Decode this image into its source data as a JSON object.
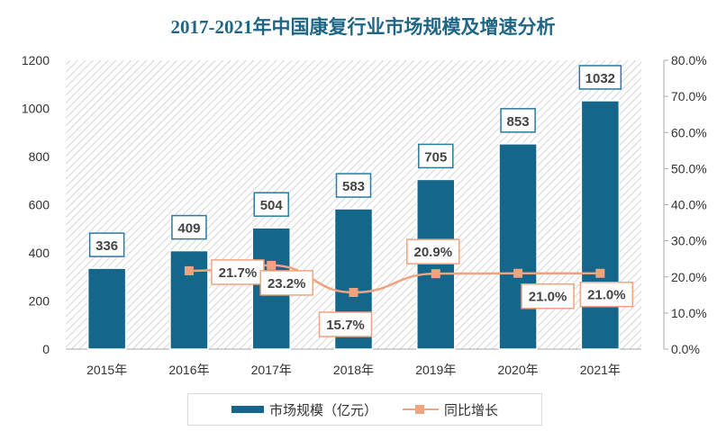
{
  "chart_data": {
    "type": "bar+line",
    "title": "2017-2021年中国康复行业市场规模及增速分析",
    "categories": [
      "2015年",
      "2016年",
      "2017年",
      "2018年",
      "2019年",
      "2020年",
      "2021年"
    ],
    "series": [
      {
        "name": "市场规模（亿元）",
        "type": "bar",
        "axis": "left",
        "values": [
          336,
          409,
          504,
          583,
          705,
          853,
          1032
        ],
        "labels": [
          "336",
          "409",
          "504",
          "583",
          "705",
          "853",
          "1032"
        ]
      },
      {
        "name": "同比增长",
        "type": "line",
        "axis": "right",
        "values": [
          null,
          21.7,
          23.2,
          15.7,
          20.9,
          21.0,
          21.0
        ],
        "labels": [
          "",
          "21.7%",
          "23.2%",
          "15.7%",
          "20.9%",
          "21.0%",
          "21.0%"
        ]
      }
    ],
    "y_left": {
      "range": [
        0,
        1200
      ],
      "ticks": [
        "0",
        "200",
        "400",
        "600",
        "800",
        "1000",
        "1200"
      ]
    },
    "y_right": {
      "range": [
        0,
        80
      ],
      "ticks": [
        "0.0%",
        "10.0%",
        "20.0%",
        "30.0%",
        "40.0%",
        "50.0%",
        "60.0%",
        "70.0%",
        "80.0%"
      ]
    },
    "legend_position": "bottom",
    "colors": {
      "bar": "#14678a",
      "line": "#f0a37f",
      "title": "#1f6686"
    }
  }
}
